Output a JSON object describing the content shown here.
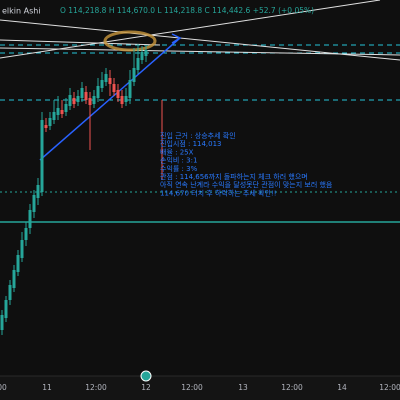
{
  "header": {
    "symbol": "elkin Ashi",
    "ohlc": "O 114,218.8 H 114,670.0 L 114,218.8 C 114,442.6 +52.7 (+0.05%)"
  },
  "note": {
    "lines": [
      "진입 근거 : 상승추세 확인",
      "진입시점 : 114,013",
      "배율 : 25X",
      "손익비 : 3:1",
      "수익률 : 3%",
      "관점 : 114,656까지 돌파하는지 체크 하러 했으며",
      "아직 연속 난계라 수익을 달성못단 관점이 맞는지 보러 했음",
      "114,670 터치 후 하락하는 추세 확인!!"
    ]
  },
  "time_axis": {
    "labels": [
      "00",
      "11",
      "12:00",
      "12",
      "12:00",
      "13",
      "12:00",
      "14",
      "12:00"
    ]
  }
}
